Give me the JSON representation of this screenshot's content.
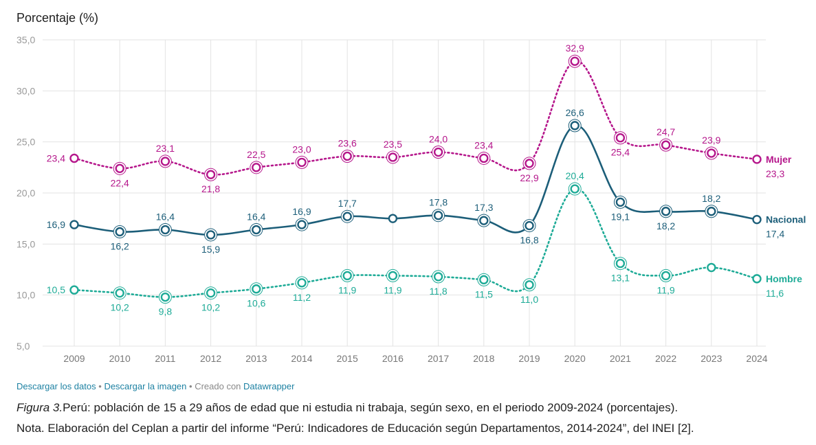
{
  "colors": {
    "mujer": "#b5168b",
    "nacional": "#1c5e79",
    "hombre": "#1eab97",
    "grid": "#e3e3e3",
    "tick": "#999999"
  },
  "chart_data": {
    "type": "line",
    "ylabel": "Porcentaje (%)",
    "yticks": [
      "35,0",
      "30,0",
      "25,0",
      "20,0",
      "15,0",
      "10,0",
      "5,0"
    ],
    "ylim": [
      5,
      35
    ],
    "categories": [
      "2009",
      "2010",
      "2011",
      "2012",
      "2013",
      "2014",
      "2015",
      "2016",
      "2017",
      "2018",
      "2019",
      "2020",
      "2021",
      "2022",
      "2023",
      "2024"
    ],
    "series": [
      {
        "name": "Mujer",
        "values": [
          23.4,
          22.4,
          23.1,
          21.8,
          22.5,
          23.0,
          23.6,
          23.5,
          24.0,
          23.4,
          22.9,
          32.9,
          25.4,
          24.7,
          23.9,
          23.3
        ],
        "labels": [
          "23,4",
          "22,4",
          "23,1",
          "21,8",
          "22,5",
          "23,0",
          "23,6",
          "23,5",
          "24,0",
          "23,4",
          "22,9",
          "32,9",
          "25,4",
          "24,7",
          "23,9",
          "23,3"
        ]
      },
      {
        "name": "Nacional",
        "values": [
          16.9,
          16.2,
          16.4,
          15.9,
          16.4,
          16.9,
          17.7,
          17.5,
          17.8,
          17.3,
          16.8,
          26.6,
          19.1,
          18.2,
          18.2,
          17.4
        ],
        "labels": [
          "16,9",
          "16,2",
          "16,4",
          "15,9",
          "16,4",
          "16,9",
          "17,7",
          "",
          "17,8",
          "17,3",
          "16,8",
          "26,6",
          "19,1",
          "18,2",
          "18,2",
          "17,4"
        ]
      },
      {
        "name": "Hombre",
        "values": [
          10.5,
          10.2,
          9.8,
          10.2,
          10.6,
          11.2,
          11.9,
          11.9,
          11.8,
          11.5,
          11.0,
          20.4,
          13.1,
          11.9,
          12.7,
          11.6
        ],
        "labels": [
          "10,5",
          "10,2",
          "9,8",
          "10,2",
          "10,6",
          "11,2",
          "11,9",
          "11,9",
          "11,8",
          "11,5",
          "11,0",
          "20,4",
          "13,1",
          "11,9",
          "",
          "11,6"
        ]
      }
    ],
    "grid": true,
    "legend": "inline-right"
  },
  "footer": {
    "link_data": "Descargar los datos",
    "link_image": "Descargar la imagen",
    "created_with": "Creado con",
    "tool": "Datawrapper",
    "bullet": "•"
  },
  "caption": {
    "figure_label": "Figura 3.",
    "figure_text": "Perú: población de 15 a 29 años de edad que ni estudia ni trabaja, según sexo, en el periodo 2009-2024 (porcentajes).",
    "note": "Nota. Elaboración del Ceplan a partir del informe “Perú: Indicadores de Educación según Departamentos, 2014-2024”, del INEI [2]."
  }
}
